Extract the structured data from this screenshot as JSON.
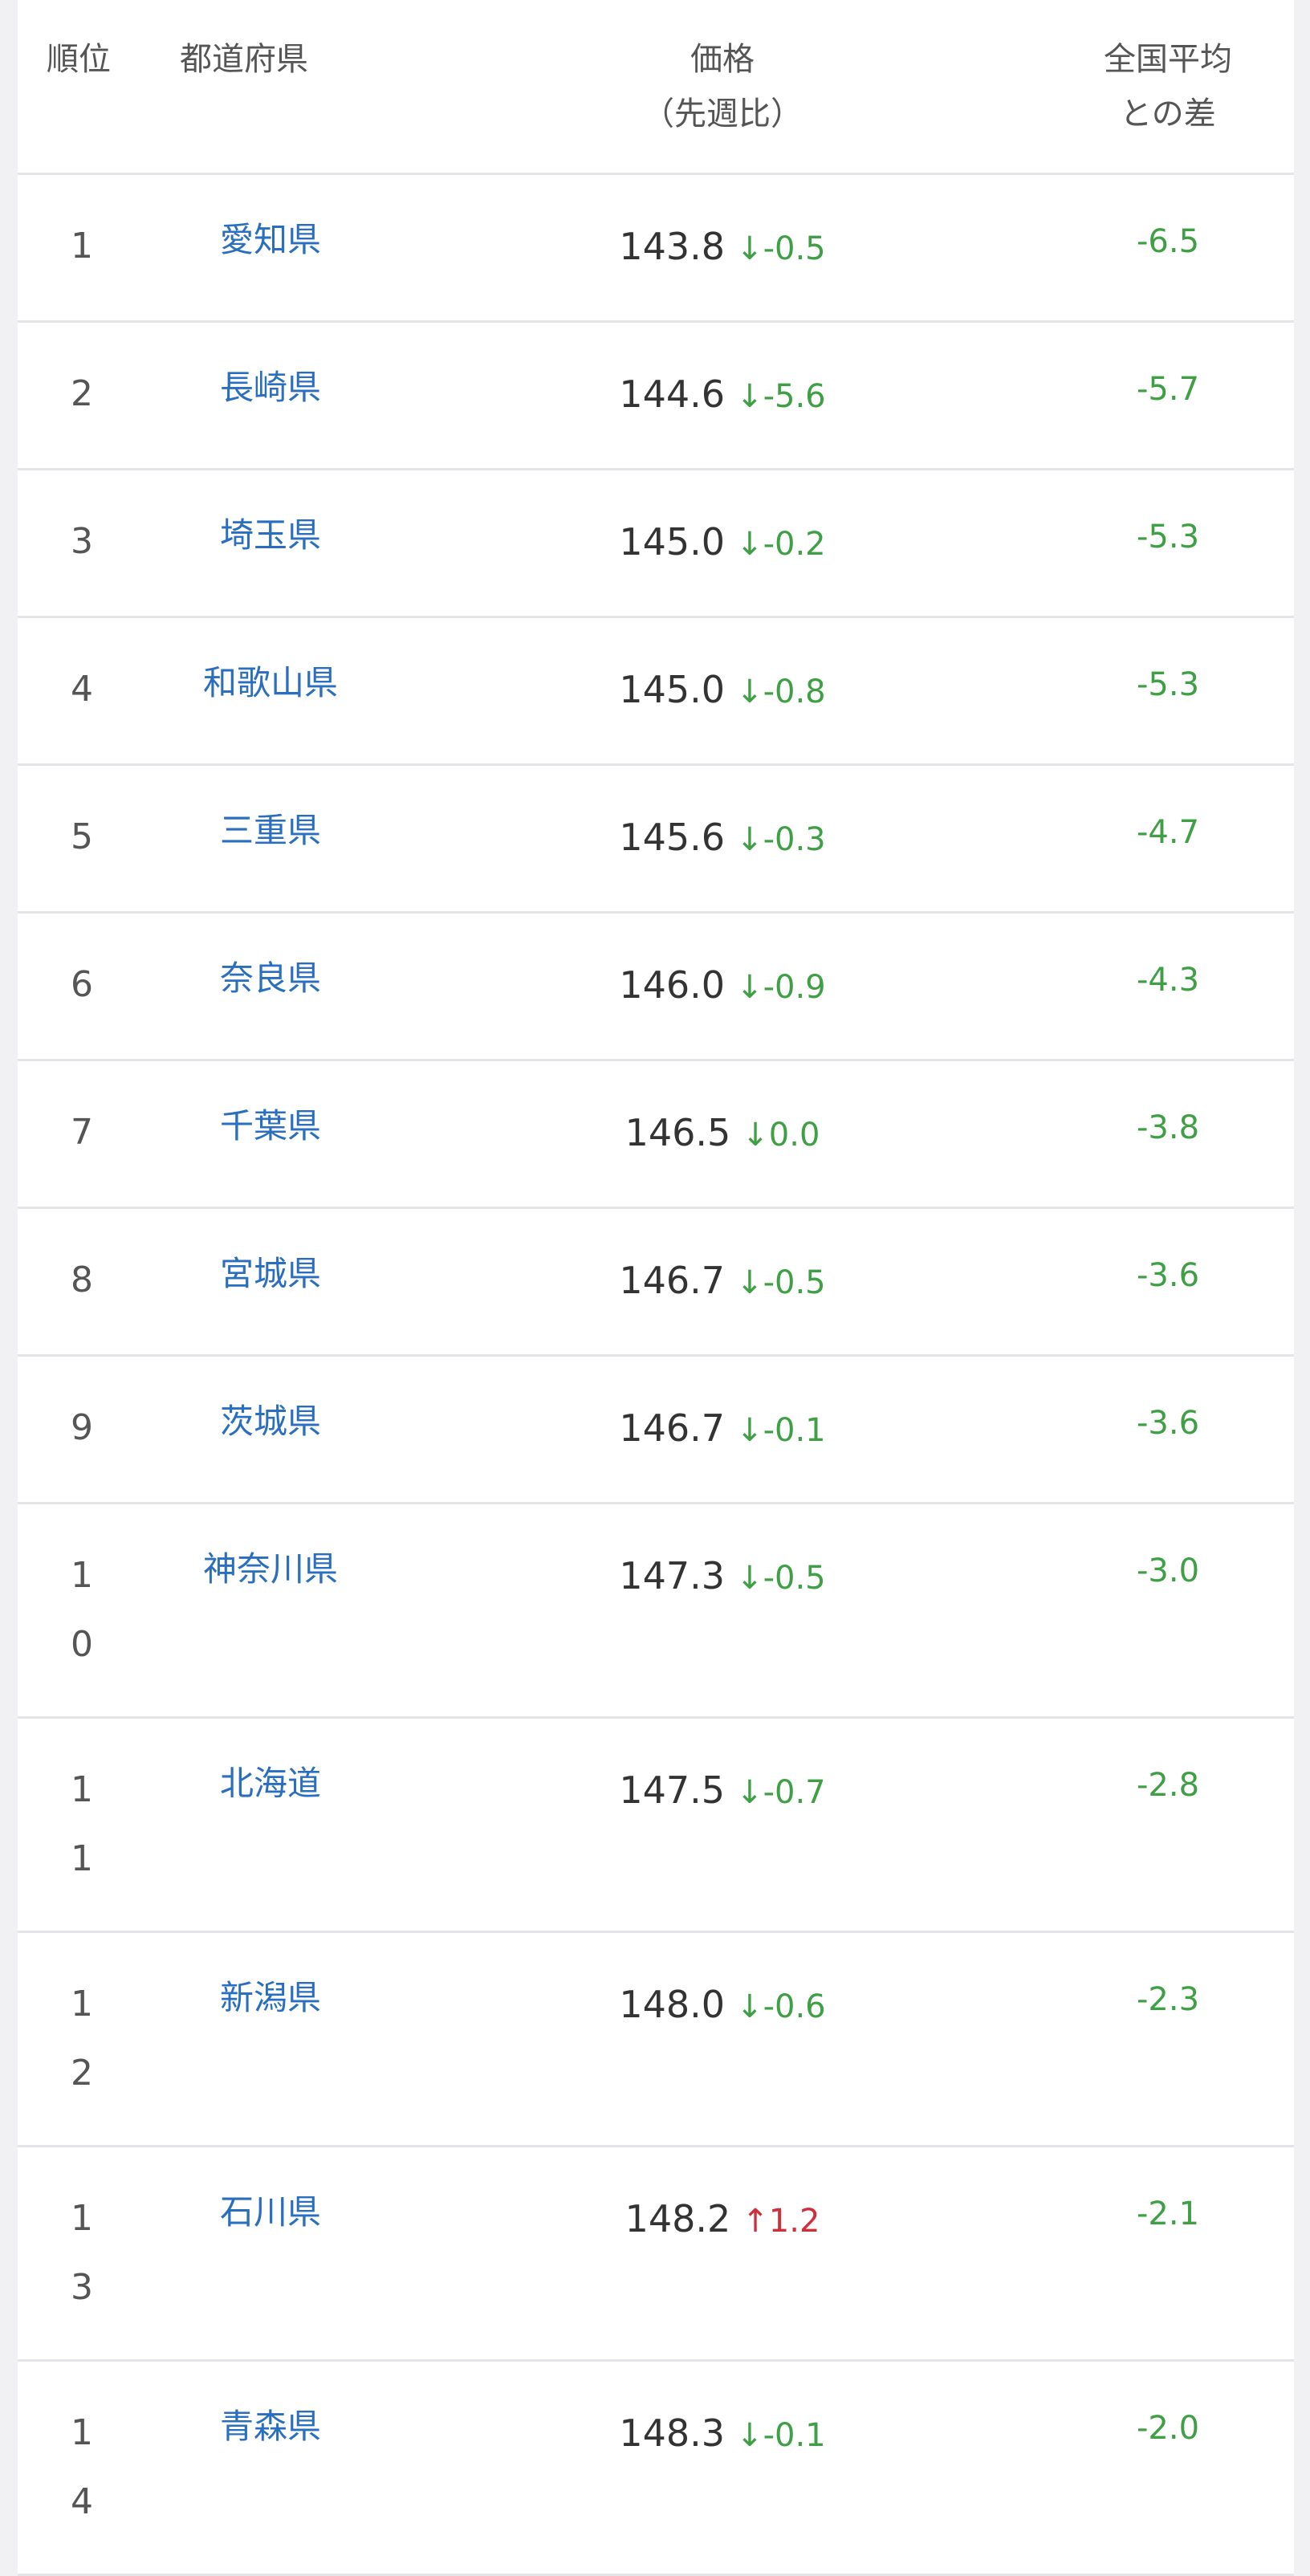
{
  "header": {
    "rank": "順位",
    "pref": "都道府県",
    "price_line1": "価格",
    "price_line2": "（先週比）",
    "diff_line1": "全国平均",
    "diff_line2": "との差"
  },
  "colors": {
    "link": "#2a6fbf",
    "down": "#3f9f45",
    "up": "#cf2f3a",
    "text": "#333333"
  },
  "rows": [
    {
      "rank": "1",
      "pref": "愛知県",
      "price": "143.8",
      "dir": "down",
      "change": "-0.5",
      "diff": "-6.5"
    },
    {
      "rank": "2",
      "pref": "長崎県",
      "price": "144.6",
      "dir": "down",
      "change": "-5.6",
      "diff": "-5.7"
    },
    {
      "rank": "3",
      "pref": "埼玉県",
      "price": "145.0",
      "dir": "down",
      "change": "-0.2",
      "diff": "-5.3"
    },
    {
      "rank": "4",
      "pref": "和歌山県",
      "price": "145.0",
      "dir": "down",
      "change": "-0.8",
      "diff": "-5.3"
    },
    {
      "rank": "5",
      "pref": "三重県",
      "price": "145.6",
      "dir": "down",
      "change": "-0.3",
      "diff": "-4.7"
    },
    {
      "rank": "6",
      "pref": "奈良県",
      "price": "146.0",
      "dir": "down",
      "change": "-0.9",
      "diff": "-4.3"
    },
    {
      "rank": "7",
      "pref": "千葉県",
      "price": "146.5",
      "dir": "down",
      "change": "0.0",
      "diff": "-3.8"
    },
    {
      "rank": "8",
      "pref": "宮城県",
      "price": "146.7",
      "dir": "down",
      "change": "-0.5",
      "diff": "-3.6"
    },
    {
      "rank": "9",
      "pref": "茨城県",
      "price": "146.7",
      "dir": "down",
      "change": "-0.1",
      "diff": "-3.6"
    },
    {
      "rank": "10",
      "pref": "神奈川県",
      "price": "147.3",
      "dir": "down",
      "change": "-0.5",
      "diff": "-3.0"
    },
    {
      "rank": "11",
      "pref": "北海道",
      "price": "147.5",
      "dir": "down",
      "change": "-0.7",
      "diff": "-2.8"
    },
    {
      "rank": "12",
      "pref": "新潟県",
      "price": "148.0",
      "dir": "down",
      "change": "-0.6",
      "diff": "-2.3"
    },
    {
      "rank": "13",
      "pref": "石川県",
      "price": "148.2",
      "dir": "up",
      "change": "1.2",
      "diff": "-2.1"
    },
    {
      "rank": "14",
      "pref": "青森県",
      "price": "148.3",
      "dir": "down",
      "change": "-0.1",
      "diff": "-2.0"
    }
  ]
}
